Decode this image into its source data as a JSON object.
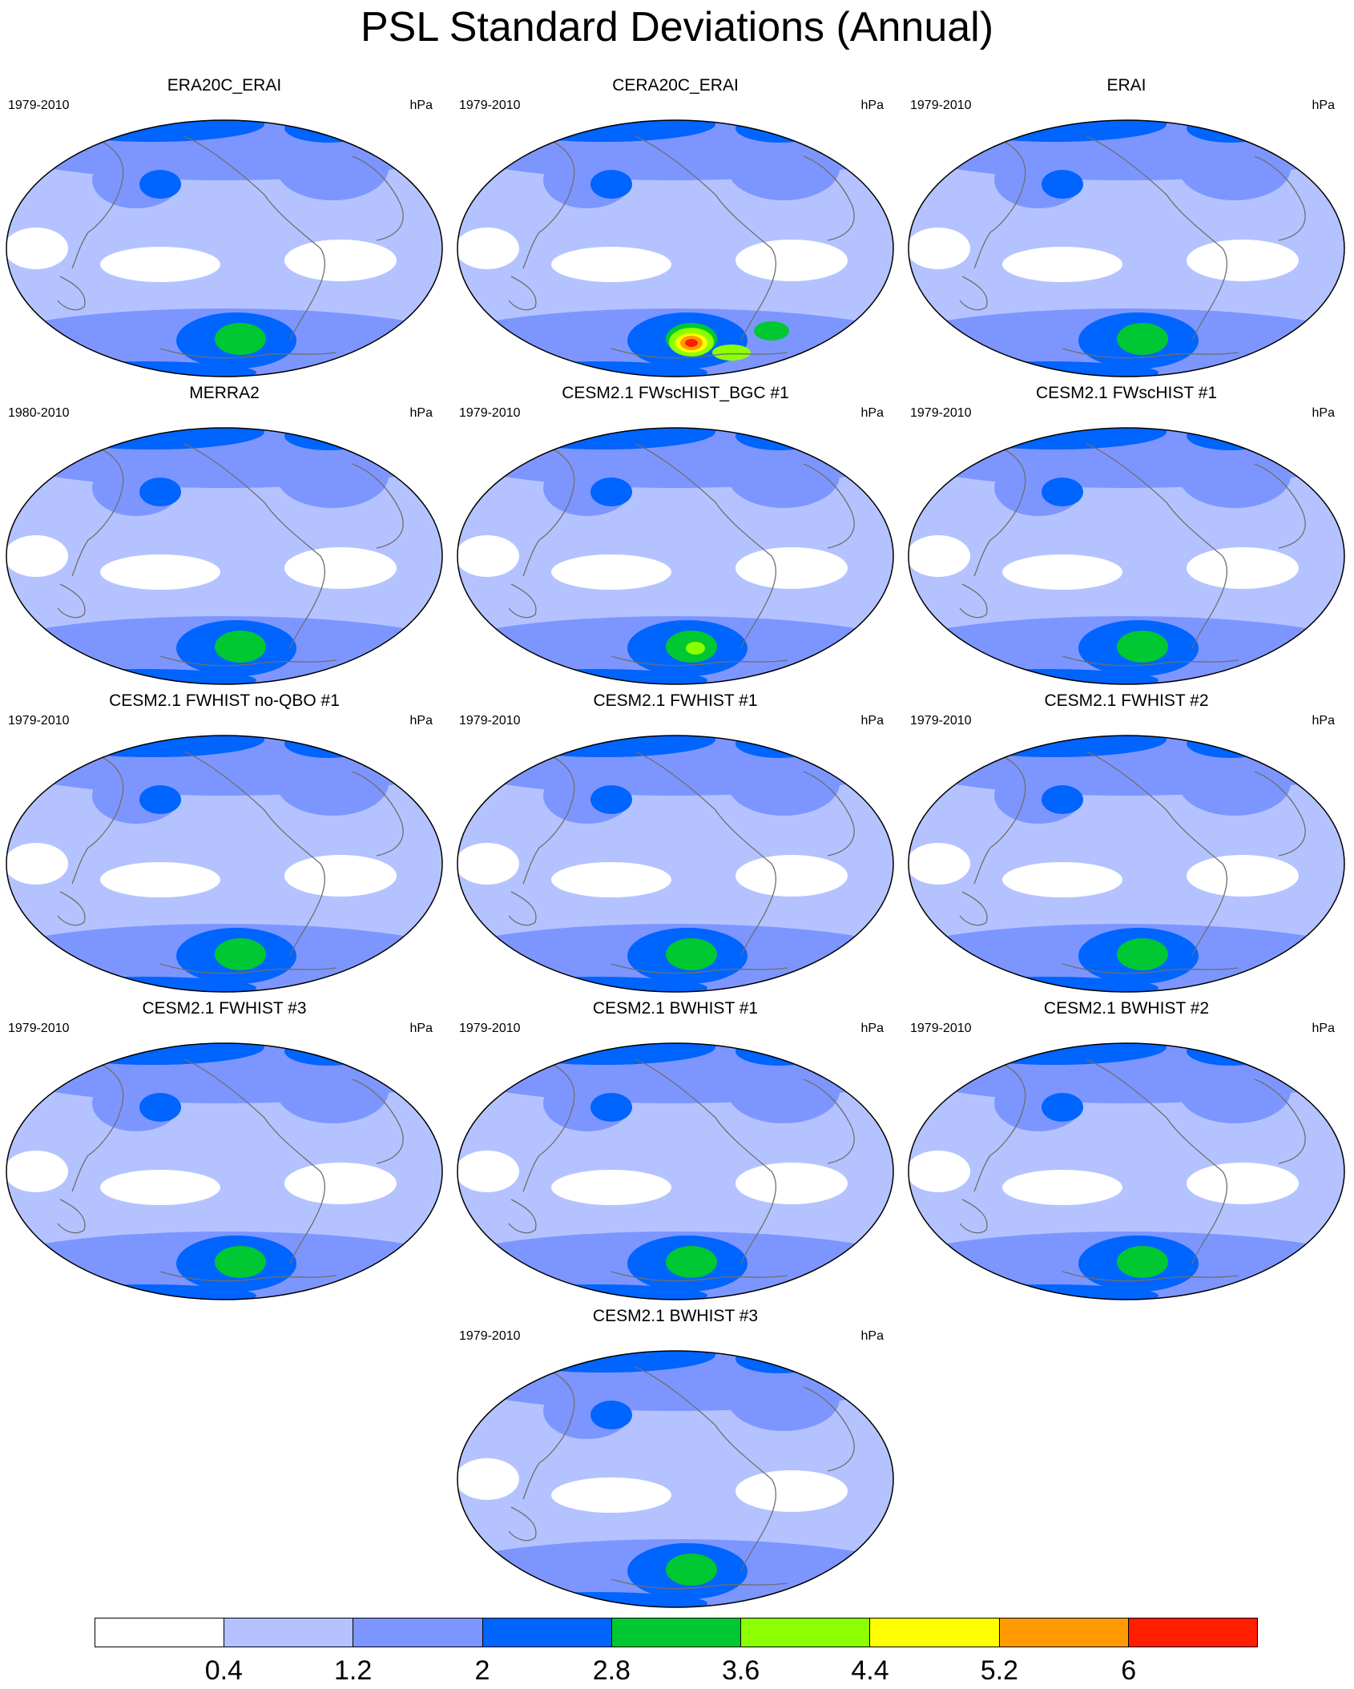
{
  "title": "PSL Standard Deviations (Annual)",
  "panels": [
    {
      "title": "ERA20C_ERAI",
      "years": "1979-2010",
      "units": "hPa",
      "max_level": 4
    },
    {
      "title": "CERA20C_ERAI",
      "years": "1979-2010",
      "units": "hPa",
      "max_level": 9
    },
    {
      "title": "ERAI",
      "years": "1979-2010",
      "units": "hPa",
      "max_level": 4
    },
    {
      "title": "MERRA2",
      "years": "1980-2010",
      "units": "hPa",
      "max_level": 4
    },
    {
      "title": "CESM2.1 FWscHIST_BGC #1",
      "years": "1979-2010",
      "units": "hPa",
      "max_level": 5
    },
    {
      "title": "CESM2.1 FWscHIST #1",
      "years": "1979-2010",
      "units": "hPa",
      "max_level": 4
    },
    {
      "title": "CESM2.1 FWHIST no-QBO #1",
      "years": "1979-2010",
      "units": "hPa",
      "max_level": 4
    },
    {
      "title": "CESM2.1 FWHIST #1",
      "years": "1979-2010",
      "units": "hPa",
      "max_level": 4
    },
    {
      "title": "CESM2.1 FWHIST #2",
      "years": "1979-2010",
      "units": "hPa",
      "max_level": 4
    },
    {
      "title": "CESM2.1 FWHIST #3",
      "years": "1979-2010",
      "units": "hPa",
      "max_level": 4
    },
    {
      "title": "CESM2.1 BWHIST #1",
      "years": "1979-2010",
      "units": "hPa",
      "max_level": 4
    },
    {
      "title": "CESM2.1 BWHIST #2",
      "years": "1979-2010",
      "units": "hPa",
      "max_level": 4
    },
    {
      "title": "CESM2.1 BWHIST #3",
      "years": "1979-2010",
      "units": "hPa",
      "max_level": 4
    }
  ],
  "colorbar": {
    "labels": [
      "0.4",
      "1.2",
      "2",
      "2.8",
      "3.6",
      "4.4",
      "5.2",
      "6"
    ],
    "colors": [
      "#ffffff",
      "#b4c3ff",
      "#7d96ff",
      "#0064ff",
      "#00c832",
      "#8cff00",
      "#ffff00",
      "#ff9b00",
      "#ff1e00"
    ]
  }
}
